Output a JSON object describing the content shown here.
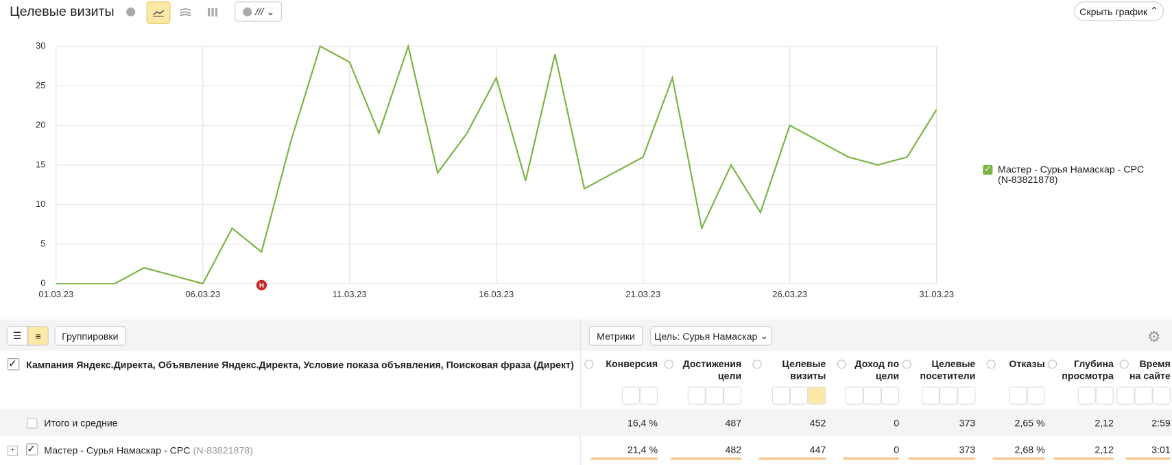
{
  "header": {
    "title": "Целевые визиты",
    "note_toggle": "///",
    "hide_chart": "Скрыть график"
  },
  "chart_data": {
    "type": "line",
    "categories": [
      "01.03.23",
      null,
      null,
      null,
      null,
      "06.03.23",
      null,
      null,
      null,
      null,
      "11.03.23",
      null,
      null,
      null,
      null,
      "16.03.23",
      null,
      null,
      null,
      null,
      "21.03.23",
      null,
      null,
      null,
      null,
      "26.03.23",
      null,
      null,
      null,
      null,
      "31.03.23"
    ],
    "series": [
      {
        "name": "Мастер - Сурья Намаскар - CPC (N-83821878)",
        "color": "#7cb342",
        "values": [
          0,
          0,
          0,
          2,
          1,
          0,
          7,
          4,
          18,
          30,
          28,
          19,
          30,
          14,
          19,
          26,
          13,
          29,
          12,
          14,
          16,
          26,
          7,
          15,
          9,
          20,
          18,
          16,
          15,
          16,
          22
        ]
      }
    ],
    "ylim": [
      0,
      30
    ],
    "yticks": [
      0,
      5,
      10,
      15,
      20,
      25,
      30
    ],
    "grid": true,
    "annotation": "Н"
  },
  "table": {
    "toolbar": {
      "groupings": "Группировки",
      "metrics": "Метрики",
      "goal": "Цель: Сурья Намаскар"
    },
    "dimension_header": "Кампания Яндекс.Директа, Объявление Яндекс.Директа, Условие показа объявления, Поисковая фраза (Директ)",
    "columns": [
      "Конверсия",
      "Достижения цели",
      "Целевые визиты",
      "Доход по цели",
      "Целевые посетители",
      "Отказы",
      "Глубина просмотра",
      "Время на сайте"
    ],
    "rows": [
      {
        "label": "Итого и средние",
        "cells": [
          "16,4 %",
          "487",
          "452",
          "0",
          "373",
          "2,65 %",
          "2,12",
          "2:59"
        ]
      },
      {
        "label": "Мастер - Сурья Намаскар - CPC",
        "id": "(N-83821878)",
        "cells": [
          "21,4 %",
          "482",
          "447",
          "0",
          "373",
          "2,68 %",
          "2,12",
          "3:01"
        ]
      }
    ]
  }
}
